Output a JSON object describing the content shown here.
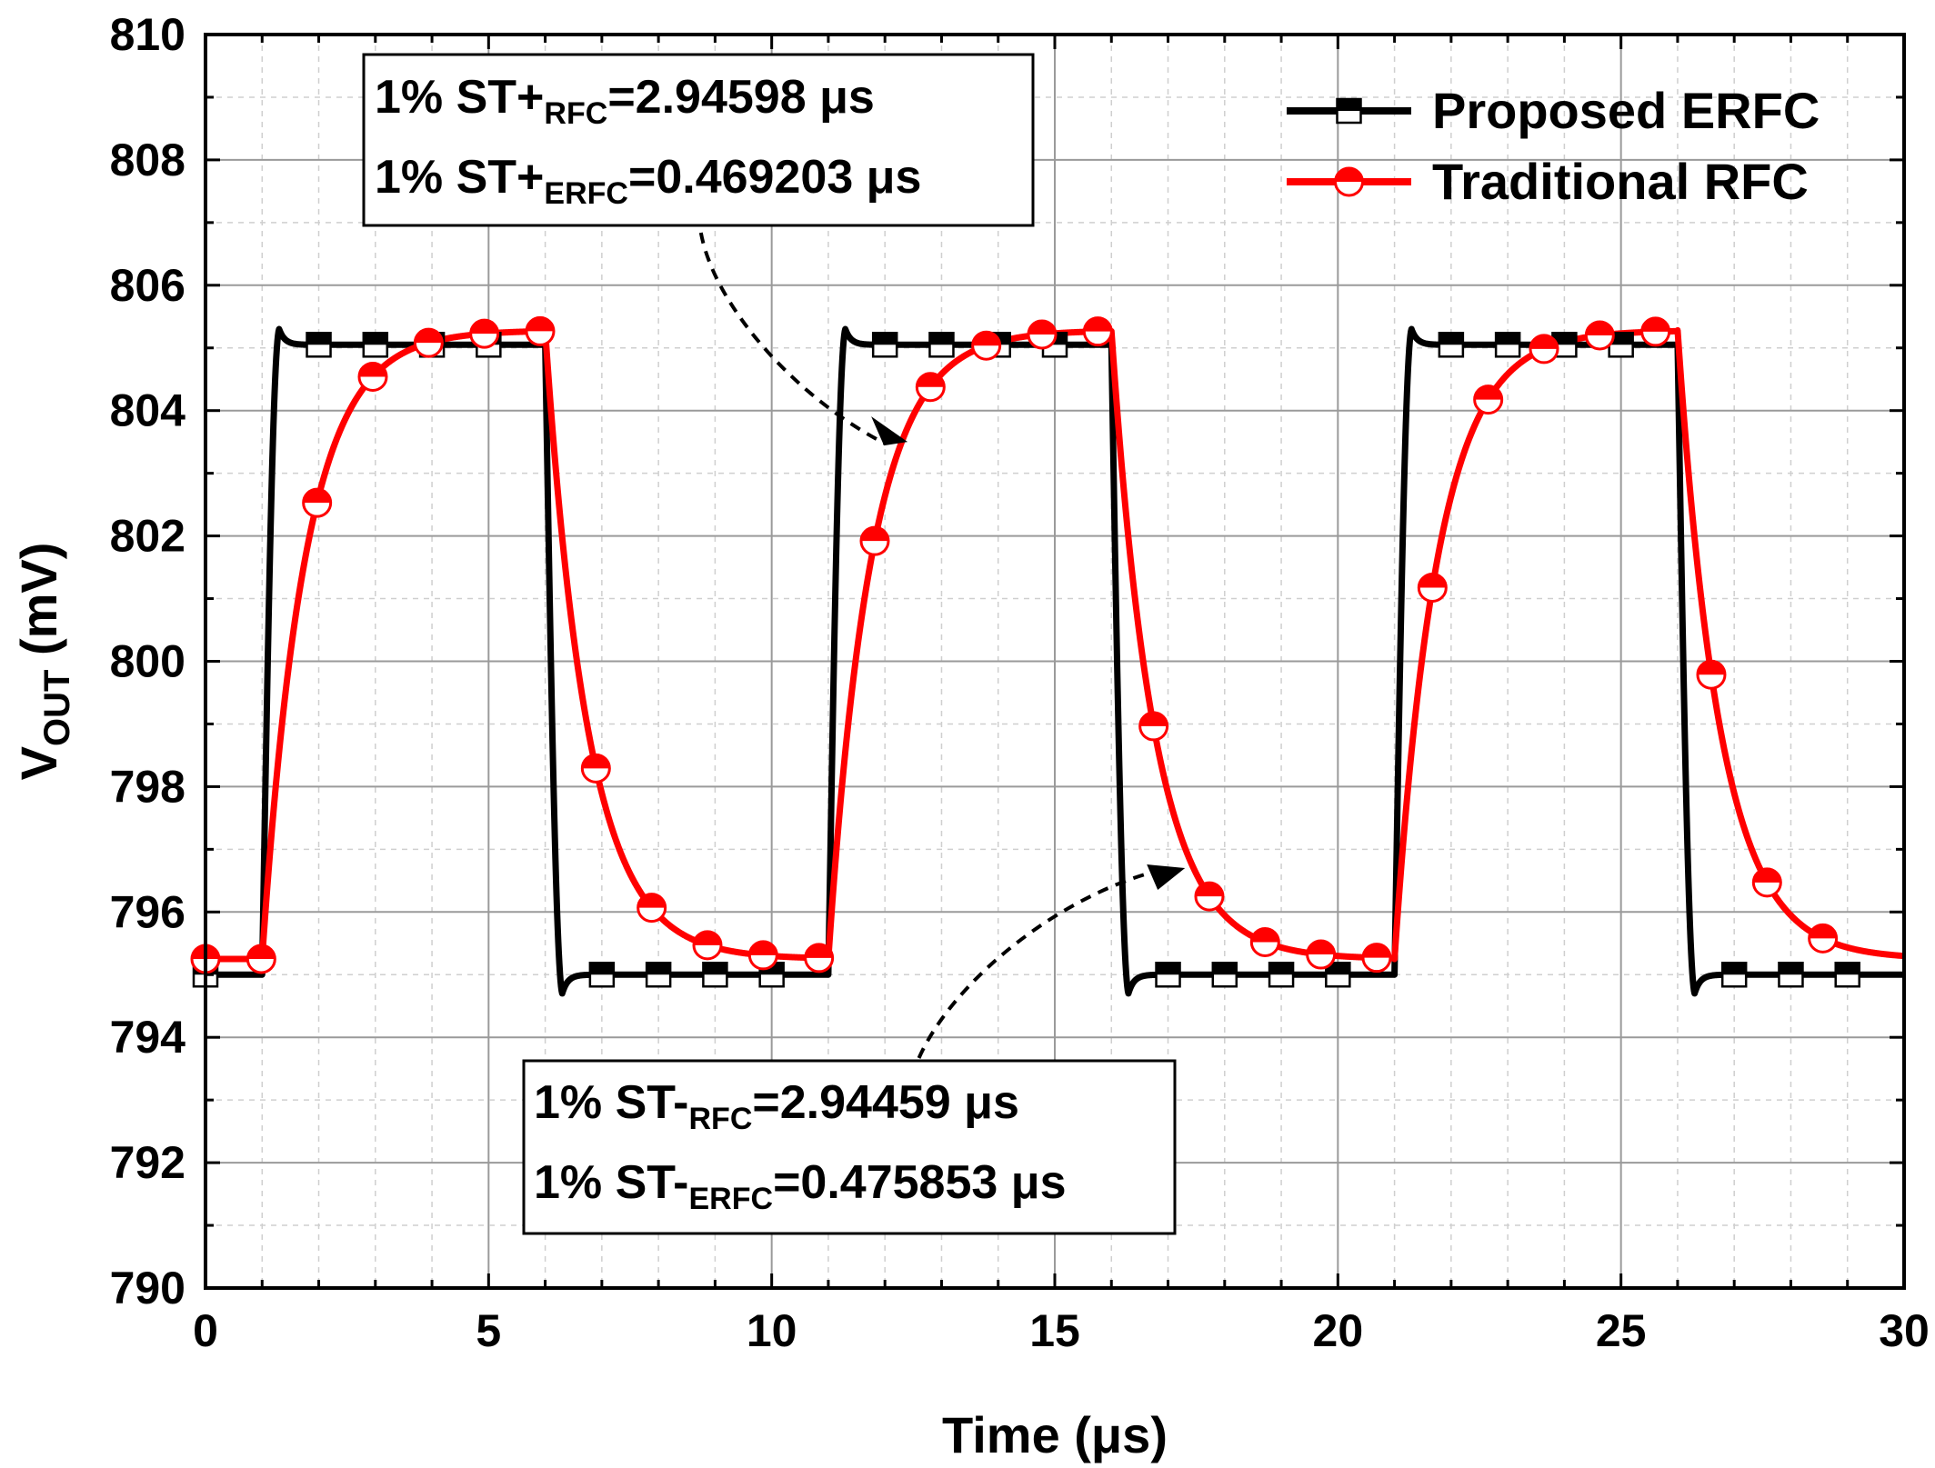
{
  "chart_data": {
    "type": "line",
    "title": "",
    "xlabel": "Time (μs)",
    "ylabel_main": "V",
    "ylabel_sub": "OUT",
    "ylabel_unit": " (mV)",
    "xlim": [
      0,
      30
    ],
    "ylim": [
      790,
      810
    ],
    "xticks": [
      0,
      5,
      10,
      15,
      20,
      25,
      30
    ],
    "yticks": [
      790,
      792,
      794,
      796,
      798,
      800,
      802,
      804,
      806,
      808,
      810
    ],
    "grid": true,
    "legend_position": "top-right",
    "period_us": 10,
    "step_on_times_us": [
      1,
      11,
      21
    ],
    "step_off_times_us": [
      6,
      16,
      26
    ],
    "series": [
      {
        "name": "Proposed ERFC",
        "color": "#000000",
        "marker": "square-half-open",
        "low_mV": 795.0,
        "high_mV": 805.05,
        "settling_time_rise_us": 0.469203,
        "settling_time_fall_us": 0.475853,
        "overshoot_peak_mV": 805.3,
        "undershoot_peak_mV": 794.7
      },
      {
        "name": "Traditional RFC",
        "color": "#ff0000",
        "marker": "circle-half-open",
        "low_mV": 795.25,
        "high_mV": 805.28,
        "settling_time_rise_us": 2.94598,
        "settling_time_fall_us": 2.94459
      }
    ],
    "annotations": [
      {
        "lines": [
          {
            "pre": "1% ST+",
            "sub": "RFC",
            "post": "=2.94598 μs"
          },
          {
            "pre": "1% ST+",
            "sub": "ERFC",
            "post": "=0.469203 μs"
          }
        ],
        "arrow_target": {
          "x": 12.4,
          "y": 803.5
        }
      },
      {
        "lines": [
          {
            "pre": "1% ST-",
            "sub": "RFC",
            "post": "=2.94459 μs"
          },
          {
            "pre": "1% ST-",
            "sub": "ERFC",
            "post": "=0.475853 μs"
          }
        ],
        "arrow_target": {
          "x": 17.3,
          "y": 796.7
        }
      }
    ]
  }
}
